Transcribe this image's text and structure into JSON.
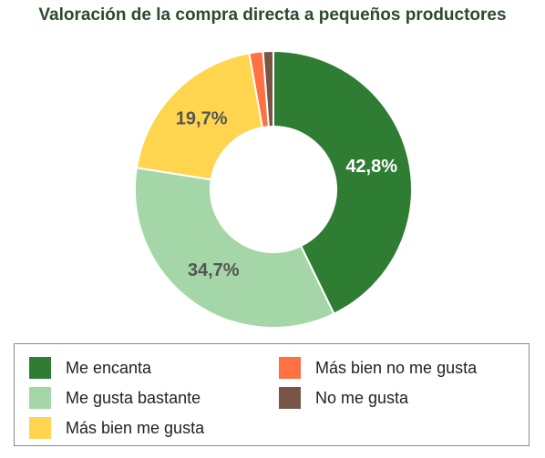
{
  "title": "Valoración de la compra directa a pequeños productores",
  "chart_data": {
    "type": "pie",
    "variant": "donut",
    "title": "Valoración de la compra directa a pequeños productores",
    "categories": [
      "Me encanta",
      "Me gusta bastante",
      "Más bien me gusta",
      "Más bien no me gusta",
      "No me gusta"
    ],
    "values": [
      42.8,
      34.7,
      19.7,
      1.6,
      1.2
    ],
    "data_labels": [
      "42,8%",
      "34,7%",
      "19,7%",
      "",
      ""
    ],
    "colors": [
      "#2e7d32",
      "#a5d6a7",
      "#ffd54f",
      "#ff7043",
      "#795548"
    ],
    "label_colors": [
      "#ffffff",
      "#555555",
      "#555555",
      "#555555",
      "#555555"
    ],
    "legend_position": "bottom"
  },
  "legend": {
    "items": [
      {
        "label": "Me encanta",
        "color": "#2e7d32"
      },
      {
        "label": "Me gusta bastante",
        "color": "#a5d6a7"
      },
      {
        "label": "Más bien me gusta",
        "color": "#ffd54f"
      },
      {
        "label": "Más bien no me gusta",
        "color": "#ff7043"
      },
      {
        "label": "No me gusta",
        "color": "#795548"
      }
    ]
  }
}
